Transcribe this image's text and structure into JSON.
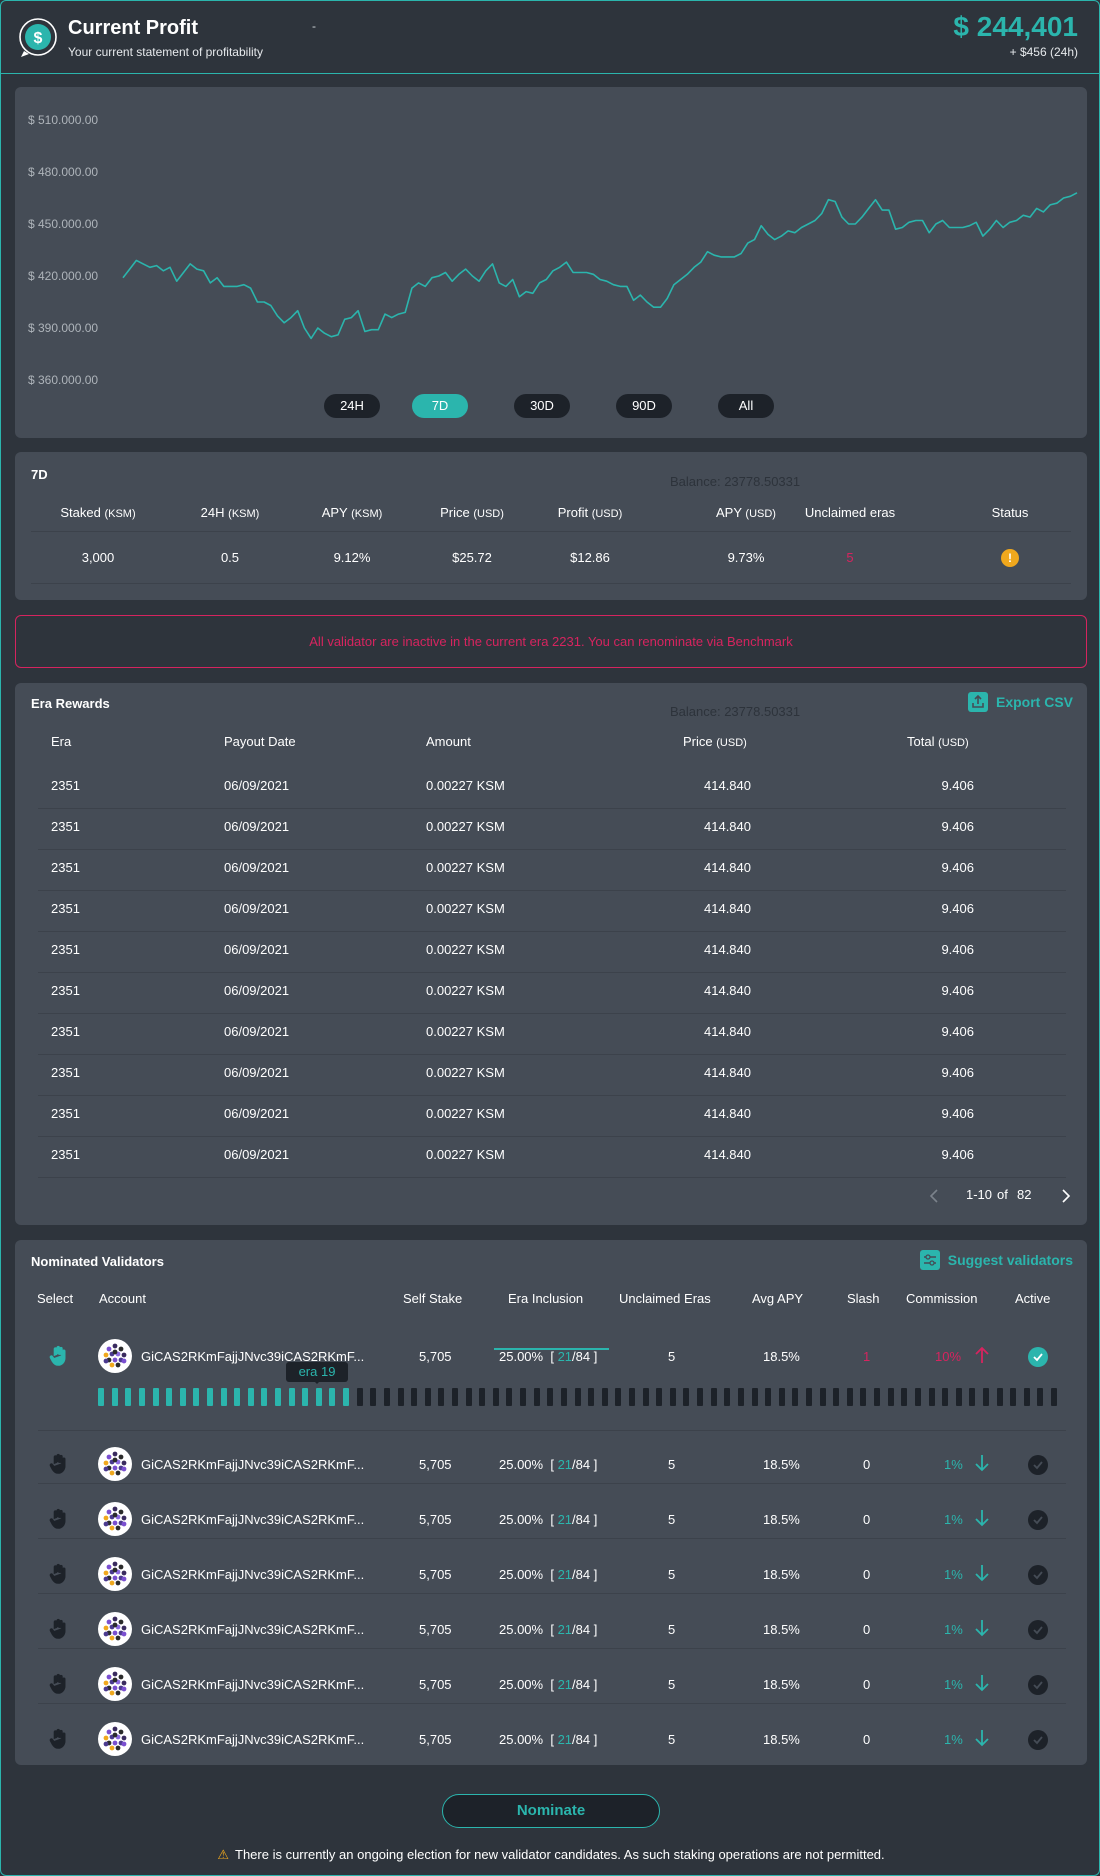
{
  "header": {
    "title": "Current Profit",
    "subtitle": "Your current statement of profitability",
    "dash": "-",
    "total": "$ 244,401",
    "change": "+ $456 (24h)"
  },
  "chart_data": {
    "type": "line",
    "ylim": [
      360000,
      510000
    ],
    "y_ticks": [
      "$ 510.000.00",
      "$ 480.000.00",
      "$ 450.000.00",
      "$ 420.000.00",
      "$ 390.000.00",
      "$ 360.000.00"
    ],
    "y_tick_values": [
      510000,
      480000,
      450000,
      420000,
      390000,
      360000
    ],
    "series": [
      {
        "color": "#2bb5ad",
        "values": [
          419000,
          424000,
          429000,
          427000,
          425000,
          426000,
          423000,
          425000,
          417000,
          422000,
          427000,
          424000,
          423000,
          416000,
          419000,
          414000,
          414000,
          414000,
          415000,
          413000,
          405000,
          405000,
          403000,
          397000,
          393000,
          396000,
          400000,
          390000,
          384000,
          390000,
          387000,
          385000,
          386000,
          395000,
          396000,
          400000,
          388000,
          389000,
          389000,
          398000,
          396000,
          398000,
          399000,
          413000,
          416000,
          414000,
          419000,
          420000,
          422000,
          417000,
          421000,
          424000,
          420000,
          417000,
          423000,
          427000,
          416000,
          414000,
          418000,
          408000,
          411000,
          410000,
          416000,
          418000,
          423000,
          425000,
          428000,
          422000,
          422000,
          422000,
          421000,
          418000,
          417000,
          415000,
          414000,
          414000,
          406000,
          409000,
          405000,
          402000,
          402000,
          407000,
          415000,
          418000,
          421000,
          425000,
          428000,
          434000,
          432000,
          431000,
          431000,
          431000,
          433000,
          439000,
          441000,
          449000,
          444000,
          441000,
          443000,
          446000,
          445000,
          448000,
          450000,
          452000,
          456000,
          464000,
          463000,
          454000,
          450000,
          450000,
          454000,
          459000,
          464000,
          458000,
          458000,
          447000,
          448000,
          451000,
          452000,
          452000,
          445000,
          450000,
          452000,
          448000,
          448000,
          448000,
          449000,
          451000,
          443000,
          447000,
          452000,
          448000,
          451000,
          452000,
          455000,
          454000,
          459000,
          457000,
          461000,
          462000,
          465000,
          466000,
          468000
        ]
      }
    ]
  },
  "ranges": [
    "24H",
    "7D",
    "30D",
    "90D",
    "All"
  ],
  "active_range": "7D",
  "stats": {
    "title": "7D",
    "balance_ghost": "Balance: 23778.50331",
    "headers": [
      {
        "label": "Staked",
        "unit": "(KSM)"
      },
      {
        "label": "24H",
        "unit": "(KSM)"
      },
      {
        "label": "APY",
        "unit": "(KSM)"
      },
      {
        "label": "Price",
        "unit": "(USD)"
      },
      {
        "label": "Profit",
        "unit": "(USD)"
      },
      {
        "label": "APY",
        "unit": "(USD)"
      },
      {
        "label": "Unclaimed eras",
        "unit": ""
      },
      {
        "label": "Status",
        "unit": ""
      }
    ],
    "values": [
      "3,000",
      "0.5",
      "9.12%",
      "$25.72",
      "$12.86",
      "9.73%",
      "5",
      "!"
    ]
  },
  "alert": {
    "text": "All validator are inactive in the current era 2231. You can renominate via Benchmark"
  },
  "rewards": {
    "title": "Era Rewards",
    "balance_ghost": "Balance: 23778.50331",
    "export_label": "Export CSV",
    "headers": [
      {
        "label": "Era",
        "unit": ""
      },
      {
        "label": "Payout Date",
        "unit": ""
      },
      {
        "label": "Amount",
        "unit": ""
      },
      {
        "label": "Price",
        "unit": "(USD)"
      },
      {
        "label": "Total",
        "unit": "(USD)"
      }
    ],
    "rows": [
      [
        "2351",
        "06/09/2021",
        "0.00227 KSM",
        "414.840",
        "9.406"
      ],
      [
        "2351",
        "06/09/2021",
        "0.00227 KSM",
        "414.840",
        "9.406"
      ],
      [
        "2351",
        "06/09/2021",
        "0.00227 KSM",
        "414.840",
        "9.406"
      ],
      [
        "2351",
        "06/09/2021",
        "0.00227 KSM",
        "414.840",
        "9.406"
      ],
      [
        "2351",
        "06/09/2021",
        "0.00227 KSM",
        "414.840",
        "9.406"
      ],
      [
        "2351",
        "06/09/2021",
        "0.00227 KSM",
        "414.840",
        "9.406"
      ],
      [
        "2351",
        "06/09/2021",
        "0.00227 KSM",
        "414.840",
        "9.406"
      ],
      [
        "2351",
        "06/09/2021",
        "0.00227 KSM",
        "414.840",
        "9.406"
      ],
      [
        "2351",
        "06/09/2021",
        "0.00227 KSM",
        "414.840",
        "9.406"
      ],
      [
        "2351",
        "06/09/2021",
        "0.00227 KSM",
        "414.840",
        "9.406"
      ]
    ],
    "pager": {
      "range": "1-10",
      "of": "of",
      "total": "82"
    }
  },
  "validators": {
    "title": "Nominated Validators",
    "suggest_label": "Suggest validators",
    "headers": [
      "Select",
      "Account",
      "Self Stake",
      "Era Inclusion",
      "Unclaimed Eras",
      "Avg APY",
      "Slash",
      "Commission",
      "Active"
    ],
    "era_tooltip": "era 19",
    "era_filled": 19,
    "era_total": 71,
    "rows": [
      {
        "account": "GiCAS2RKmFajjJNvc39iCAS2RKmF...",
        "stake": "5,705",
        "incl_pct": "25.00%",
        "incl_open": "[",
        "incl_n": "21",
        "incl_total": "/84",
        "incl_close": "]",
        "unclaimed": "5",
        "apy": "18.5%",
        "slash": "1",
        "commission": "10%",
        "selected": true,
        "active": true
      },
      {
        "account": "GiCAS2RKmFajjJNvc39iCAS2RKmF...",
        "stake": "5,705",
        "incl_pct": "25.00%",
        "incl_open": "[",
        "incl_n": "21",
        "incl_total": "/84",
        "incl_close": "]",
        "unclaimed": "5",
        "apy": "18.5%",
        "slash": "0",
        "commission": "1%",
        "selected": false,
        "active": false
      },
      {
        "account": "GiCAS2RKmFajjJNvc39iCAS2RKmF...",
        "stake": "5,705",
        "incl_pct": "25.00%",
        "incl_open": "[",
        "incl_n": "21",
        "incl_total": "/84",
        "incl_close": "]",
        "unclaimed": "5",
        "apy": "18.5%",
        "slash": "0",
        "commission": "1%",
        "selected": false,
        "active": false
      },
      {
        "account": "GiCAS2RKmFajjJNvc39iCAS2RKmF...",
        "stake": "5,705",
        "incl_pct": "25.00%",
        "incl_open": "[",
        "incl_n": "21",
        "incl_total": "/84",
        "incl_close": "]",
        "unclaimed": "5",
        "apy": "18.5%",
        "slash": "0",
        "commission": "1%",
        "selected": false,
        "active": false
      },
      {
        "account": "GiCAS2RKmFajjJNvc39iCAS2RKmF...",
        "stake": "5,705",
        "incl_pct": "25.00%",
        "incl_open": "[",
        "incl_n": "21",
        "incl_total": "/84",
        "incl_close": "]",
        "unclaimed": "5",
        "apy": "18.5%",
        "slash": "0",
        "commission": "1%",
        "selected": false,
        "active": false
      },
      {
        "account": "GiCAS2RKmFajjJNvc39iCAS2RKmF...",
        "stake": "5,705",
        "incl_pct": "25.00%",
        "incl_open": "[",
        "incl_n": "21",
        "incl_total": "/84",
        "incl_close": "]",
        "unclaimed": "5",
        "apy": "18.5%",
        "slash": "0",
        "commission": "1%",
        "selected": false,
        "active": false
      },
      {
        "account": "GiCAS2RKmFajjJNvc39iCAS2RKmF...",
        "stake": "5,705",
        "incl_pct": "25.00%",
        "incl_open": "[",
        "incl_n": "21",
        "incl_total": "/84",
        "incl_close": "]",
        "unclaimed": "5",
        "apy": "18.5%",
        "slash": "0",
        "commission": "1%",
        "selected": false,
        "active": false
      }
    ]
  },
  "nominate_label": "Nominate",
  "footer_note": "There is currently an ongoing election for new validator candidates. As such staking operations are not permitted.",
  "colors": {
    "accent": "#2bb5ad",
    "danger": "#d6245f",
    "warning": "#f0a81d",
    "panel": "#454c56",
    "background": "#2e343c"
  }
}
